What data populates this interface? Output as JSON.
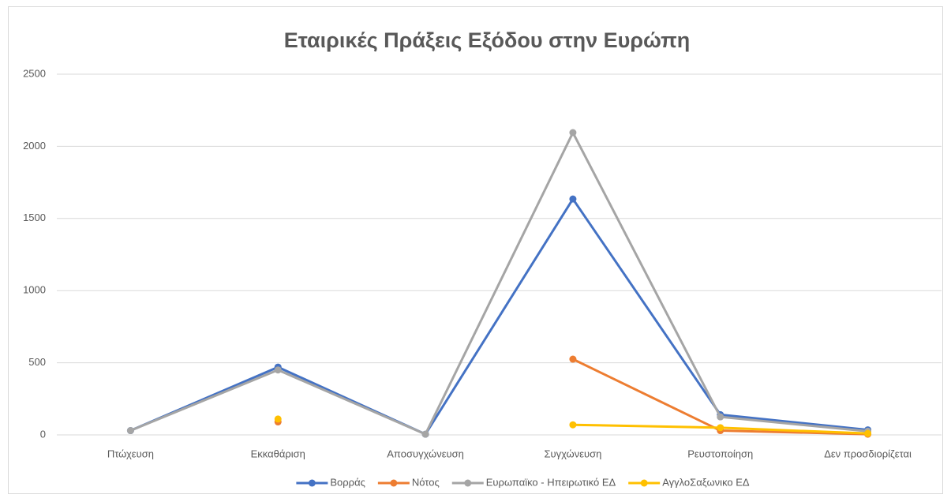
{
  "chart_data": {
    "type": "line",
    "title": "Εταιρικές Πράξεις Εξόδου στην Ευρώπη",
    "categories": [
      "Πτώχευση",
      "Εκκαθάριση",
      "Αποσυγχώνευση",
      "Συγχώνευση",
      "Ρευστοποίηση",
      "Δεν προσδιορίζεται"
    ],
    "series": [
      {
        "name": "Βορράς",
        "color": "#4472c4",
        "values": [
          30,
          470,
          5,
          1635,
          140,
          35
        ]
      },
      {
        "name": "Νότος",
        "color": "#ed7d31",
        "values": [
          null,
          90,
          null,
          525,
          30,
          5
        ]
      },
      {
        "name": "Ευρωπαϊκο - Ηπειρωτικό ΕΔ",
        "color": "#a5a5a5",
        "values": [
          30,
          450,
          5,
          2095,
          125,
          25
        ]
      },
      {
        "name": "ΑγγλοΣαξωνικο ΕΔ",
        "color": "#ffc000",
        "values": [
          null,
          110,
          null,
          70,
          50,
          10
        ]
      }
    ],
    "ylim": [
      0,
      2500
    ],
    "yticks": [
      0,
      500,
      1000,
      1500,
      2000,
      2500
    ],
    "grid": true,
    "legend": "bottom"
  }
}
